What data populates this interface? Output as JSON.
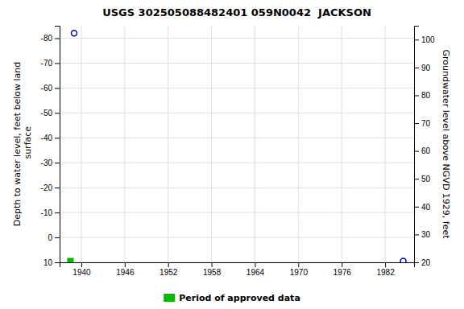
{
  "chart_data": {
    "type": "scatter",
    "title": "USGS 302505088482401 059N0042  JACKSON",
    "y_label": "Depth to water level, feet below land\n surface",
    "y2_label": "Groundwater level above NGVD 1929, feet",
    "xlim": [
      1937,
      1986
    ],
    "ylim": [
      10,
      -85
    ],
    "y2lim": [
      20,
      105
    ],
    "xticks": [
      1940,
      1946,
      1952,
      1958,
      1964,
      1970,
      1976,
      1982
    ],
    "yticks": [
      10,
      0,
      -10,
      -20,
      -30,
      -40,
      -50,
      -60,
      -70,
      -80
    ],
    "y2ticks": [
      20,
      30,
      40,
      50,
      60,
      70,
      80,
      90,
      100
    ],
    "grid": true,
    "legend": "bottom",
    "series": [
      {
        "x": [
          1939.0,
          1984.5
        ],
        "values": [
          -82.0,
          9.5
        ],
        "color": "#0000cc",
        "marker": "circle"
      },
      {
        "name": "Period of approved data",
        "x": [
          1938.5
        ],
        "values": [
          9.5
        ],
        "color": "#00bb00",
        "marker": "square"
      }
    ]
  }
}
